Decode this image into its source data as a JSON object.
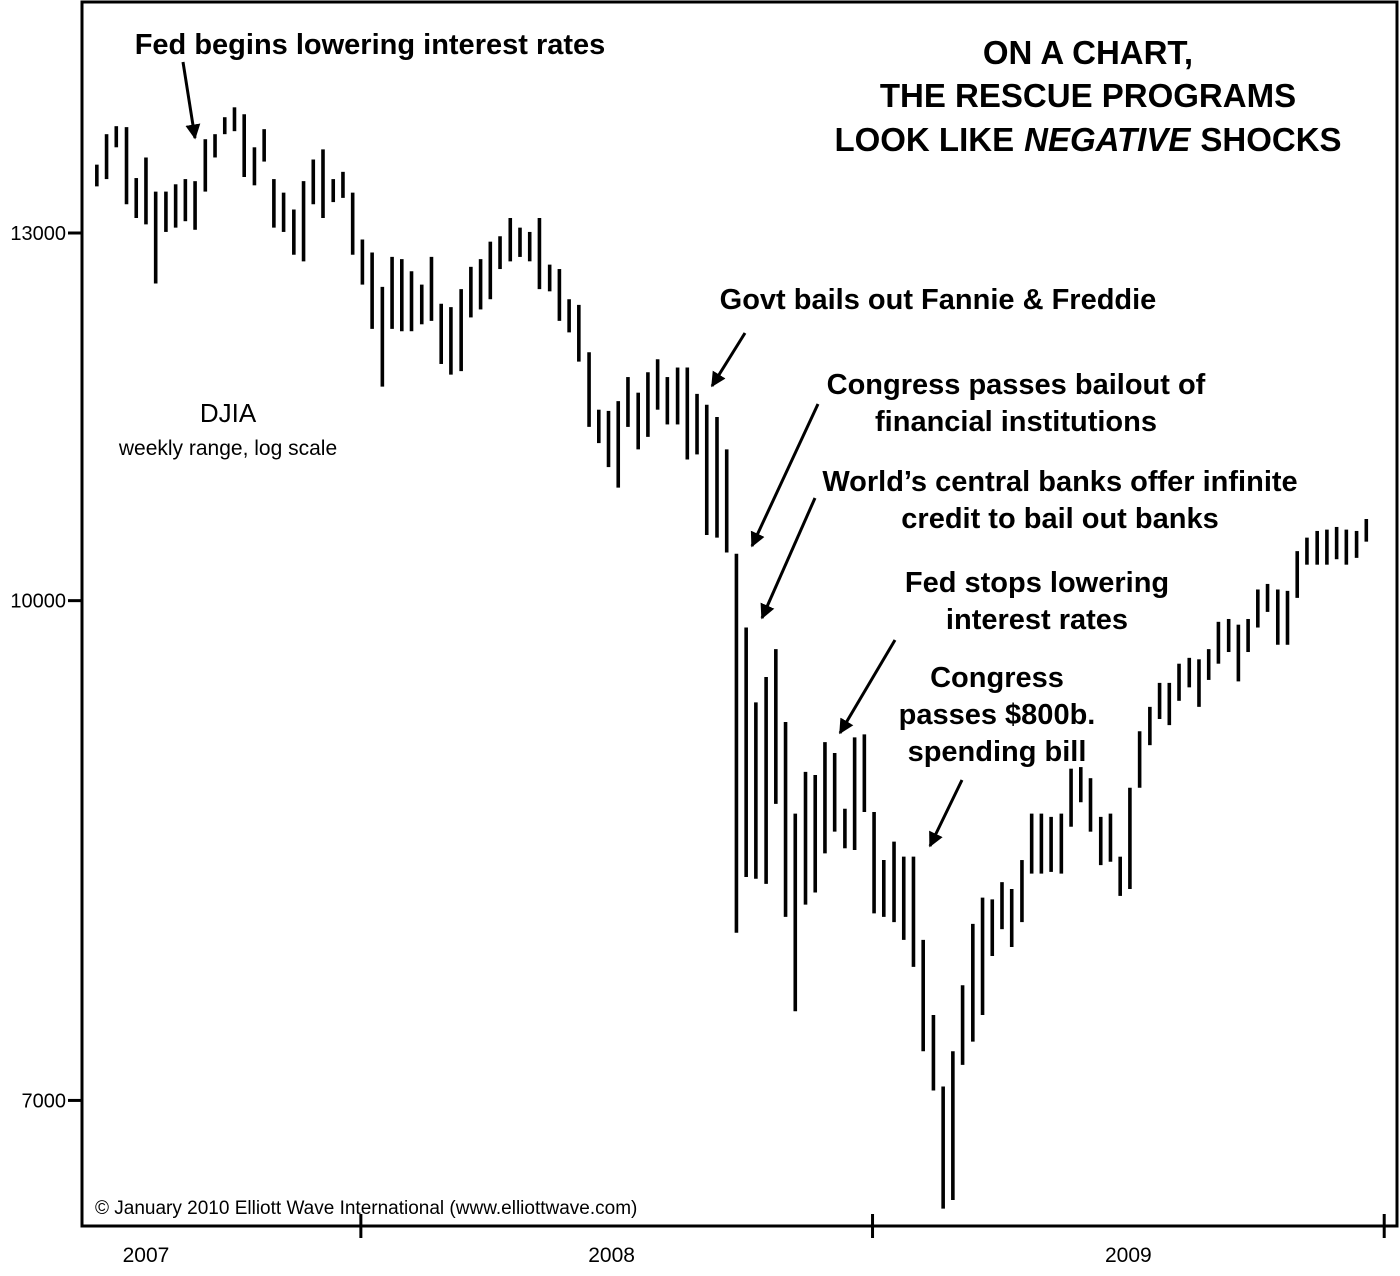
{
  "chart_data": {
    "type": "range",
    "title": [
      "ON A CHART,",
      "THE RESCUE PROGRAMS",
      "LOOK LIKE",
      "NEGATIVE",
      "SHOCKS"
    ],
    "series_label": "DJIA",
    "subtitle": "weekly range, log scale",
    "source": "© January 2010 Elliott Wave International (www.elliottwave.com)",
    "annotations": [
      [
        "Fed begins lowering interest rates"
      ],
      [
        "Govt bails out Fannie & Freddie"
      ],
      [
        "Congress passes bailout of",
        "financial institutions"
      ],
      [
        "World’s central banks offer infinite",
        "credit to bail out banks"
      ],
      [
        "Fed stops lowering",
        "interest rates"
      ],
      [
        "Congress",
        "passes $800b.",
        "spending bill"
      ]
    ],
    "log_scale": true,
    "color": "#000000",
    "xlim": [
      2007.455,
      2010.025
    ],
    "xticks": [
      {
        "value": 2007.58,
        "label": "2007"
      },
      {
        "value": 2008.49,
        "label": "2008"
      },
      {
        "value": 2009.5,
        "label": "2009"
      }
    ],
    "ylim": [
      6400,
      15330
    ],
    "yticks": [
      7000,
      10000,
      13000
    ],
    "x": [
      2007.484,
      2007.503,
      2007.522,
      2007.542,
      2007.561,
      2007.58,
      2007.599,
      2007.619,
      2007.638,
      2007.657,
      2007.676,
      2007.696,
      2007.715,
      2007.734,
      2007.753,
      2007.772,
      2007.792,
      2007.811,
      2007.83,
      2007.849,
      2007.869,
      2007.888,
      2007.907,
      2007.926,
      2007.946,
      2007.965,
      2007.984,
      2008.003,
      2008.022,
      2008.042,
      2008.061,
      2008.08,
      2008.099,
      2008.119,
      2008.138,
      2008.157,
      2008.176,
      2008.196,
      2008.215,
      2008.234,
      2008.253,
      2008.272,
      2008.292,
      2008.311,
      2008.33,
      2008.349,
      2008.369,
      2008.388,
      2008.407,
      2008.426,
      2008.446,
      2008.465,
      2008.484,
      2008.503,
      2008.522,
      2008.542,
      2008.561,
      2008.58,
      2008.599,
      2008.619,
      2008.638,
      2008.657,
      2008.676,
      2008.696,
      2008.715,
      2008.734,
      2008.753,
      2008.772,
      2008.792,
      2008.811,
      2008.83,
      2008.849,
      2008.869,
      2008.888,
      2008.907,
      2008.926,
      2008.946,
      2008.965,
      2008.984,
      2009.003,
      2009.022,
      2009.042,
      2009.061,
      2009.08,
      2009.099,
      2009.119,
      2009.138,
      2009.157,
      2009.176,
      2009.196,
      2009.215,
      2009.234,
      2009.253,
      2009.272,
      2009.292,
      2009.311,
      2009.33,
      2009.349,
      2009.369,
      2009.388,
      2009.407,
      2009.426,
      2009.446,
      2009.465,
      2009.484,
      2009.503,
      2009.522,
      2009.542,
      2009.561,
      2009.58,
      2009.599,
      2009.619,
      2009.638,
      2009.657,
      2009.676,
      2009.696,
      2009.715,
      2009.734,
      2009.753,
      2009.772,
      2009.792,
      2009.811,
      2009.83,
      2009.849,
      2009.869,
      2009.888,
      2009.907,
      2009.926,
      2009.946,
      2009.965
    ],
    "high": [
      13650,
      13950,
      14030,
      14020,
      13520,
      13720,
      13390,
      13390,
      13460,
      13510,
      13490,
      13900,
      13950,
      14120,
      14220,
      14150,
      13820,
      14000,
      13510,
      13380,
      13220,
      13490,
      13700,
      13800,
      13510,
      13580,
      13380,
      12940,
      12820,
      12510,
      12780,
      12760,
      12650,
      12530,
      12780,
      12360,
      12330,
      12490,
      12690,
      12760,
      12920,
      12970,
      13140,
      13050,
      13010,
      13140,
      12710,
      12670,
      12400,
      12350,
      11940,
      11460,
      11450,
      11530,
      11730,
      11600,
      11770,
      11880,
      11730,
      11810,
      11810,
      11590,
      11500,
      11400,
      11140,
      10340,
      9810,
      9300,
      9470,
      9660,
      9170,
      8590,
      8850,
      8830,
      9040,
      8970,
      8620,
      9070,
      9090,
      8600,
      8310,
      8420,
      8330,
      8330,
      7850,
      7440,
      7070,
      7250,
      7600,
      7940,
      8090,
      8080,
      8180,
      8140,
      8310,
      8590,
      8590,
      8570,
      8590,
      8870,
      8880,
      8810,
      8570,
      8590,
      8330,
      8750,
      9110,
      9270,
      9430,
      9430,
      9560,
      9600,
      9590,
      9660,
      9850,
      9870,
      9830,
      9870,
      10080,
      10120,
      10080,
      10070,
      10360,
      10460,
      10510,
      10520,
      10540,
      10520,
      10510,
      10600
    ],
    "low": [
      13440,
      13510,
      13820,
      13270,
      13140,
      13080,
      12540,
      13010,
      13050,
      13110,
      13030,
      13390,
      13720,
      13950,
      13980,
      13530,
      13450,
      13680,
      13050,
      13010,
      12800,
      12740,
      13270,
      13140,
      13290,
      13330,
      12800,
      12530,
      12140,
      11650,
      12140,
      12120,
      12120,
      12180,
      12210,
      11840,
      11750,
      11780,
      12240,
      12310,
      12400,
      12670,
      12740,
      12780,
      12740,
      12490,
      12470,
      12210,
      12110,
      11860,
      11320,
      11190,
      11000,
      10840,
      11320,
      11140,
      11240,
      11460,
      11340,
      11340,
      11060,
      11100,
      10480,
      10460,
      10350,
      7890,
      8210,
      8200,
      8170,
      8650,
      7980,
      7460,
      8050,
      8120,
      8350,
      8480,
      8380,
      8370,
      8600,
      8000,
      7980,
      7950,
      7850,
      7700,
      7250,
      7050,
      6480,
      6520,
      7180,
      7300,
      7440,
      7760,
      7910,
      7810,
      7950,
      8230,
      8230,
      8240,
      8230,
      8510,
      8660,
      8480,
      8280,
      8300,
      8100,
      8140,
      8750,
      9020,
      9190,
      9150,
      9310,
      9400,
      9270,
      9450,
      9560,
      9640,
      9440,
      9640,
      9810,
      9920,
      9690,
      9690,
      10020,
      10260,
      10260,
      10260,
      10300,
      10260,
      10310,
      10430
    ]
  }
}
